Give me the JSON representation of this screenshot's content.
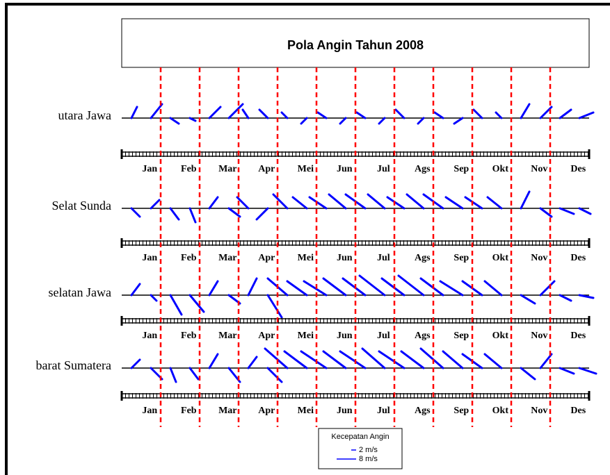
{
  "chart_data": {
    "type": "stick",
    "title": "Pola Angin Tahun 2008",
    "categories": [
      "Jan",
      "Feb",
      "Mar",
      "Apr",
      "Mei",
      "Jun",
      "Jul",
      "Ags",
      "Sep",
      "Okt",
      "Nov",
      "Des"
    ],
    "series": [
      {
        "name": "utara Jawa",
        "color": "#0000ff",
        "values": [
          [
            2,
            4
          ],
          [
            4,
            5
          ],
          [
            3,
            -2
          ],
          [
            2,
            -1
          ],
          [
            4,
            4
          ],
          [
            5,
            5
          ],
          [
            -2,
            3
          ],
          [
            -3,
            3
          ],
          [
            -2,
            2
          ],
          [
            -2,
            -2
          ],
          [
            -3,
            2
          ],
          [
            -2,
            -2
          ],
          [
            -3,
            2
          ],
          [
            -2,
            -2
          ],
          [
            -3,
            3
          ],
          [
            -2,
            -2
          ],
          [
            -3,
            2
          ],
          [
            -3,
            -2
          ],
          [
            -3,
            3
          ],
          [
            -2,
            2
          ],
          [
            3,
            5
          ],
          [
            4,
            4
          ],
          [
            4,
            3
          ],
          [
            5,
            2
          ]
        ]
      },
      {
        "name": "Selat Sunda",
        "color": "#0000ff",
        "values": [
          [
            3,
            -3
          ],
          [
            3,
            3
          ],
          [
            3,
            -4
          ],
          [
            2,
            -5
          ],
          [
            3,
            4
          ],
          [
            4,
            -3
          ],
          [
            -4,
            4
          ],
          [
            -4,
            -4
          ],
          [
            -5,
            5
          ],
          [
            -5,
            4
          ],
          [
            -6,
            4
          ],
          [
            -6,
            5
          ],
          [
            -7,
            5
          ],
          [
            -6,
            5
          ],
          [
            -6,
            4
          ],
          [
            -6,
            5
          ],
          [
            -7,
            5
          ],
          [
            -6,
            4
          ],
          [
            -6,
            4
          ],
          [
            -5,
            4
          ],
          [
            3,
            6
          ],
          [
            4,
            -3
          ],
          [
            5,
            -2
          ],
          [
            4,
            -2
          ]
        ]
      },
      {
        "name": "selatan Jawa",
        "color": "#0000ff",
        "values": [
          [
            3,
            4
          ],
          [
            2,
            -2
          ],
          [
            4,
            -7
          ],
          [
            5,
            -6
          ],
          [
            3,
            5
          ],
          [
            4,
            -3
          ],
          [
            3,
            6
          ],
          [
            5,
            -8
          ],
          [
            -7,
            6
          ],
          [
            -7,
            5
          ],
          [
            -8,
            5
          ],
          [
            -8,
            6
          ],
          [
            -8,
            6
          ],
          [
            -9,
            7
          ],
          [
            -8,
            6
          ],
          [
            -9,
            7
          ],
          [
            -8,
            6
          ],
          [
            -8,
            5
          ],
          [
            -7,
            5
          ],
          [
            -6,
            5
          ],
          [
            5,
            -3
          ],
          [
            5,
            5
          ],
          [
            4,
            -2
          ],
          [
            5,
            -1
          ]
        ]
      },
      {
        "name": "barat Sumatera",
        "color": "#0000ff",
        "values": [
          [
            3,
            3
          ],
          [
            4,
            -4
          ],
          [
            2,
            -5
          ],
          [
            3,
            -4
          ],
          [
            3,
            5
          ],
          [
            4,
            -5
          ],
          [
            3,
            4
          ],
          [
            5,
            -5
          ],
          [
            -8,
            7
          ],
          [
            -8,
            6
          ],
          [
            -9,
            6
          ],
          [
            -8,
            6
          ],
          [
            -9,
            6
          ],
          [
            -8,
            7
          ],
          [
            -9,
            6
          ],
          [
            -8,
            6
          ],
          [
            -8,
            7
          ],
          [
            -7,
            6
          ],
          [
            -7,
            5
          ],
          [
            -6,
            5
          ],
          [
            5,
            -4
          ],
          [
            4,
            5
          ],
          [
            5,
            -2
          ],
          [
            6,
            -2
          ]
        ]
      }
    ],
    "legend": {
      "title": "Kecepatan Angin",
      "keys": [
        {
          "value": 2,
          "label": "2 m/s"
        },
        {
          "value": 8,
          "label": "8 m/s"
        }
      ]
    }
  }
}
